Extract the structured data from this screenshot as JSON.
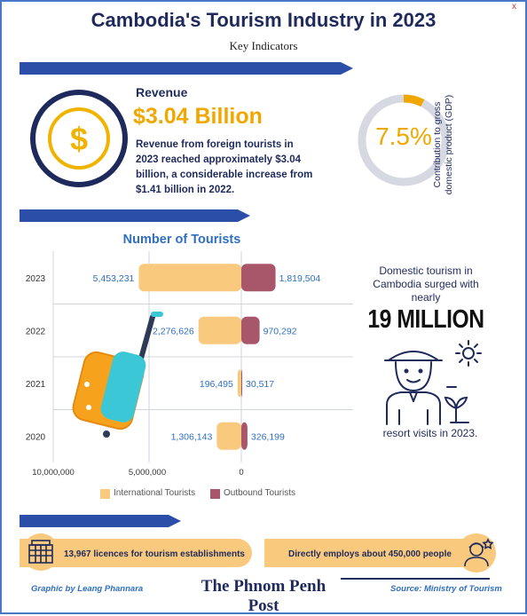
{
  "header": {
    "title": "Cambodia's Tourism Industry in 2023",
    "subtitle": "Key Indicators",
    "close_glyph": "x"
  },
  "revenue": {
    "heading": "Revenue",
    "amount": "$3.04 Billion",
    "description": "Revenue from foreign tourists in 2023 reached approximately $3.04 billion, a considerable increase from $1.41 billion in 2022.",
    "icon": "dollar-coin-icon"
  },
  "gdp": {
    "value": "7.5%",
    "value_fraction": 0.075,
    "label": "Contribution to gross domestic product (GDP)",
    "ring_color": "#d6d9e1",
    "accent_color": "#f0a800"
  },
  "chart_data": {
    "type": "bar",
    "title": "Number of Tourists",
    "categories": [
      "2023",
      "2022",
      "2021",
      "2020"
    ],
    "series": [
      {
        "name": "International Tourists",
        "color": "#f9c97d",
        "values": [
          5453231,
          2276626,
          196495,
          1306143
        ]
      },
      {
        "name": "Outbound Tourists",
        "color": "#a8566a",
        "values": [
          1819504,
          970292,
          30517,
          326199
        ]
      }
    ],
    "value_labels": {
      "International Tourists": [
        "5,453,231",
        "2,276,626",
        "196,495",
        "1,306,143"
      ],
      "Outbound Tourists": [
        "1,819,504",
        "970,292",
        "30,517",
        "326,199"
      ]
    },
    "x_ticks": [
      "10,000,000",
      "5,000,000",
      "0"
    ],
    "xlim": [
      0,
      10000000
    ],
    "legend_position": "bottom",
    "grid": true
  },
  "domestic": {
    "text": "Domestic tourism in Cambodia surged with nearly",
    "big": "19 MILLION",
    "footer": "resort visits in 2023.",
    "icon": "tourist-with-hat-icon"
  },
  "stats": {
    "licences": "13,967 licences for tourism establishments",
    "employment": "Directly employs about 450,000 people"
  },
  "footer": {
    "credit": "Graphic by Leang Phannara",
    "masthead": "The Phnom Penh Post",
    "source": "Source: Ministry of Tourism"
  },
  "colors": {
    "navy": "#1f2a5c",
    "blue": "#2f6fc0",
    "gold": "#f0a800",
    "arrow": "#2b4fa8"
  }
}
